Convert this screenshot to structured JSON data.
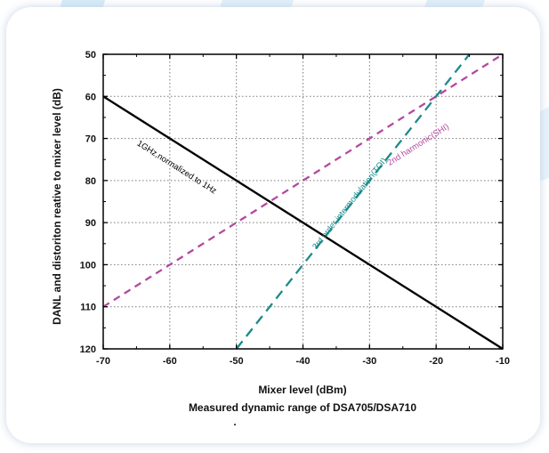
{
  "chart_data": {
    "type": "line",
    "title": "Measured dynamic range of DSA705/DSA710",
    "xlabel": "Mixer level (dBm)",
    "ylabel": "DANL and distoriton reative to mixer level (dB)",
    "xlim": [
      -70,
      -10
    ],
    "ylim": [
      120,
      50
    ],
    "y_inverted": true,
    "xticks": [
      -70,
      -60,
      -50,
      -40,
      -30,
      -20,
      -10
    ],
    "yticks": [
      50,
      60,
      70,
      80,
      90,
      100,
      110,
      120
    ],
    "grid": true,
    "legend": "none",
    "series": [
      {
        "label": "1GHz,normalized to 1Hz",
        "color": "#000000",
        "dash": "solid",
        "x": [
          -70,
          -10
        ],
        "y": [
          60,
          120
        ]
      },
      {
        "label": "2nd harmonic(SHI)",
        "color": "#b4499f",
        "dash": "dashed",
        "x": [
          -70,
          -10
        ],
        "y": [
          110,
          50
        ]
      },
      {
        "label": "3rd order intermodulation(TOI)",
        "color": "#1a8a8a",
        "dash": "dashed",
        "x": [
          -50,
          -15
        ],
        "y": [
          120,
          50
        ]
      }
    ]
  },
  "footer_mark": "."
}
